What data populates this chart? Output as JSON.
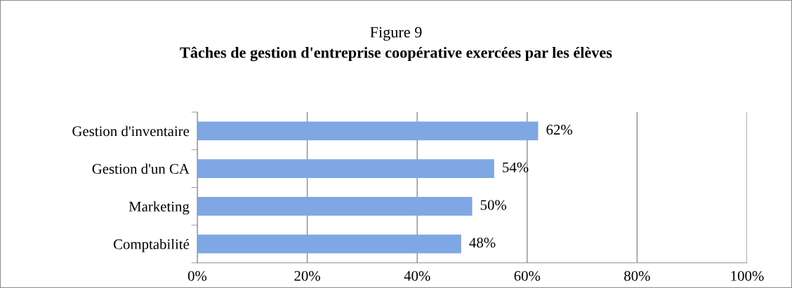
{
  "chart_data": {
    "type": "bar",
    "orientation": "horizontal",
    "title": "Figure 9",
    "subtitle": "Tâches de gestion d'entreprise coopérative exercées par les élèves",
    "categories": [
      "Gestion d'inventaire",
      "Gestion d'un CA",
      "Marketing",
      "Comptabilité"
    ],
    "values": [
      62,
      54,
      50,
      48
    ],
    "color": "#7ea7e3",
    "value_labels": [
      "62%",
      "54%",
      "50%",
      "48%"
    ],
    "xlim": [
      0,
      100
    ],
    "xticks": [
      {
        "value": 0,
        "label": "0%"
      },
      {
        "value": 20,
        "label": "20%"
      },
      {
        "value": 40,
        "label": "40%"
      },
      {
        "value": 60,
        "label": "60%"
      },
      {
        "value": 80,
        "label": "80%"
      },
      {
        "value": 100,
        "label": "100%"
      }
    ],
    "grid": "x",
    "legend": false
  }
}
